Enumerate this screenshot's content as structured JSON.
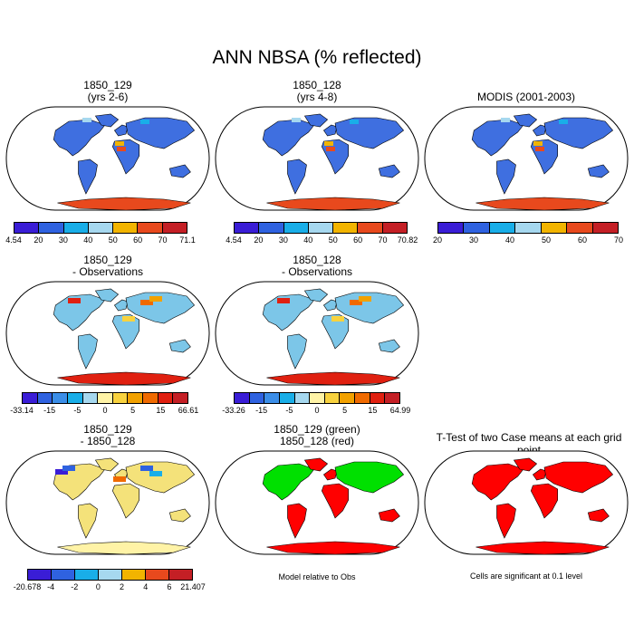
{
  "title": "ANN NBSA (% reflected)",
  "colors": {
    "abs": [
      "#3a1dd6",
      "#2f62e0",
      "#19aee8",
      "#a6d8ef",
      "#f2b400",
      "#e8491d",
      "#c41f25"
    ],
    "diff": [
      "#3a1dd6",
      "#2f62e0",
      "#3b8ee8",
      "#19aee8",
      "#a6d8ef",
      "#fff3a6",
      "#f8d23e",
      "#f2a100",
      "#f06a00",
      "#e02010",
      "#c41f25"
    ],
    "land_abs": "#3f6fe0",
    "land_diff": "#7cc6e8",
    "land_pair": "#f4e27a",
    "sig": "#ff0000",
    "green": "#00e000"
  },
  "panels": [
    {
      "title1": "1850_129",
      "title2": "(yrs 2-6)",
      "colorbar": {
        "labels": [
          "4.54",
          "20",
          "30",
          "40",
          "50",
          "60",
          "70",
          "71.1"
        ]
      }
    },
    {
      "title1": "1850_128",
      "title2": "(yrs 4-8)",
      "colorbar": {
        "labels": [
          "4.54",
          "20",
          "30",
          "40",
          "50",
          "60",
          "70",
          "70.82"
        ]
      }
    },
    {
      "title1": "",
      "title2": "MODIS (2001-2003)",
      "colorbar": {
        "labels": [
          "20",
          "30",
          "40",
          "50",
          "60",
          "70"
        ]
      }
    },
    {
      "title1": "1850_129",
      "title2": "- Observations",
      "colorbar": {
        "labels": [
          "-33.14",
          "-15",
          "-5",
          "0",
          "5",
          "15",
          "66.61"
        ]
      }
    },
    {
      "title1": "1850_128",
      "title2": "- Observations",
      "colorbar": {
        "labels": [
          "-33.26",
          "-15",
          "-5",
          "0",
          "5",
          "15",
          "64.99"
        ]
      }
    },
    {
      "title1": "1850_129",
      "title2": "- 1850_128",
      "colorbar": {
        "labels": [
          "-20.678",
          "-4",
          "-2",
          "0",
          "2",
          "4",
          "6",
          "21.407"
        ]
      }
    },
    {
      "title1": "1850_129 (green)",
      "title2": "1850_128 (red)",
      "note": "Model relative to Obs"
    },
    {
      "title1": "T-Test of two Case means at each grid point",
      "note": "Cells are significant at 0.1 level"
    }
  ]
}
